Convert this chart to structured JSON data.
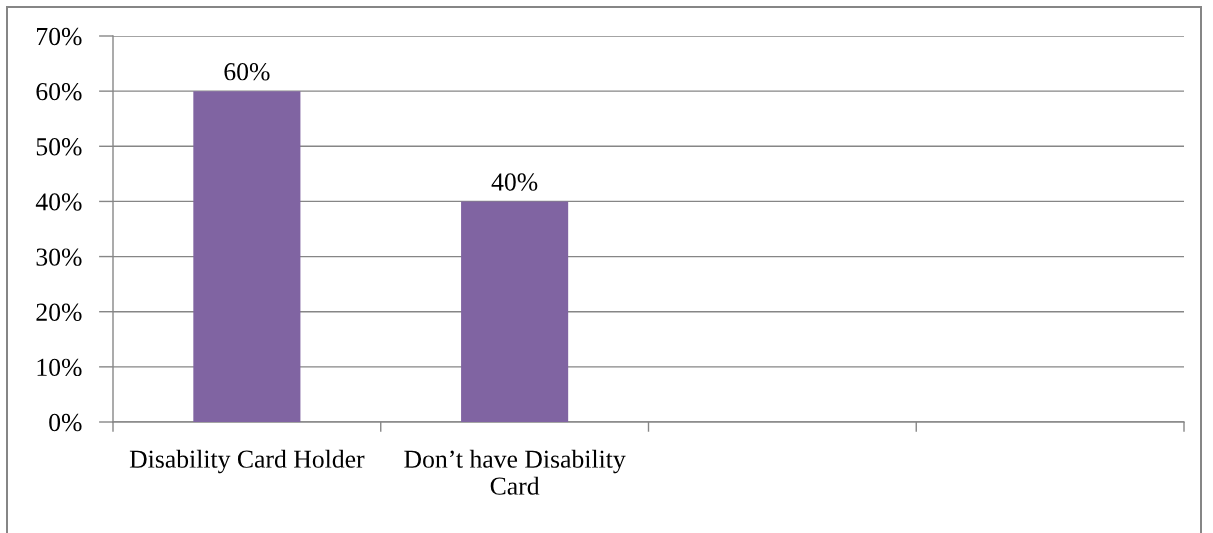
{
  "chart_data": {
    "type": "bar",
    "categories": [
      "Disability Card Holder",
      "Don’t have Disability\nCard",
      null,
      null
    ],
    "values": [
      60,
      40,
      null,
      null
    ],
    "color": "#8064a2",
    "value_labels": [
      "60%",
      "40%",
      null,
      null
    ],
    "ylim": [
      0,
      70
    ],
    "yticks": [
      {
        "value": 0,
        "label": "0%"
      },
      {
        "value": 10,
        "label": "10%"
      },
      {
        "value": 20,
        "label": "20%"
      },
      {
        "value": 30,
        "label": "30%"
      },
      {
        "value": 40,
        "label": "40%"
      },
      {
        "value": 50,
        "label": "50%"
      },
      {
        "value": 60,
        "label": "60%"
      },
      {
        "value": 70,
        "label": "70%"
      }
    ],
    "grid": "y",
    "legend": false
  }
}
